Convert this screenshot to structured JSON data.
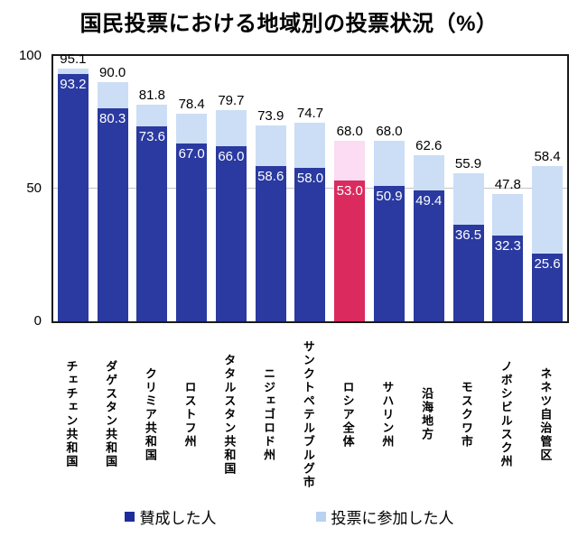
{
  "title": "国民投票における地域別の投票状況（%）",
  "legend": {
    "agree_label": "賛成した人",
    "participate_label": "投票に参加した人"
  },
  "colors": {
    "agree": "#2A3AA0",
    "participate": "#CBDEF6",
    "highlight_agree": "#DB2A5E",
    "highlight_participate": "#FBDCF2",
    "legend_agree": "#1E2D9B",
    "legend_participate": "#B9D2F2",
    "grid": "#c4c4c4",
    "axis": "#1a1a1a"
  },
  "chart_data": {
    "type": "bar",
    "subtype": "stacked",
    "title": "国民投票における地域別の投票状況（%）",
    "xlabel": "",
    "ylabel": "",
    "ylim": [
      0,
      100
    ],
    "yticks": [
      0,
      50,
      100
    ],
    "gridline_at": 50,
    "legend_position": "bottom",
    "categories": [
      "チェチェン共和国",
      "ダゲスタン共和国",
      "クリミア共和国",
      "ロストフ州",
      "タタルスタン共和国",
      "ニジェゴロド州",
      "サンクトペテルブルグ市",
      "ロシア全体",
      "サハリン州",
      "沿海地方",
      "モスクワ市",
      "ノボシビルスク州",
      "ネネツ自治管区"
    ],
    "series": [
      {
        "name": "賛成した人",
        "values": [
          93.2,
          80.3,
          73.6,
          67.0,
          66.0,
          58.6,
          58.0,
          53.0,
          50.9,
          49.4,
          36.5,
          32.3,
          25.6
        ]
      },
      {
        "name": "投票に参加した人",
        "values": [
          95.1,
          90.0,
          81.8,
          78.4,
          79.7,
          73.9,
          74.7,
          68.0,
          68.0,
          62.6,
          55.9,
          47.8,
          58.4
        ]
      }
    ],
    "highlight": {
      "category": "ロシア全体",
      "index": 7
    }
  }
}
